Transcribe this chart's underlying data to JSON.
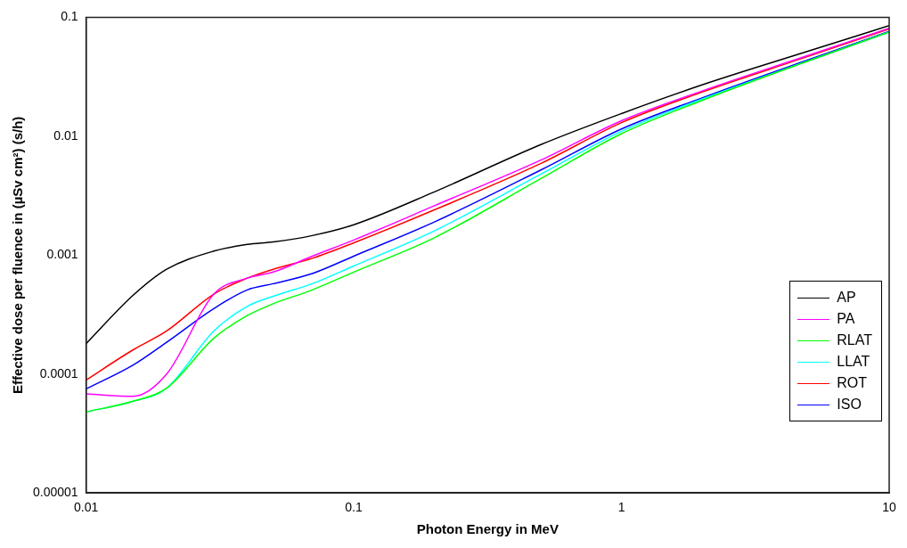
{
  "chart_data": {
    "type": "line",
    "xlabel": "Photon Energy in MeV",
    "ylabel": "Effective dose per fluence in (µSv cm²) (s/h)",
    "x": [
      0.01,
      0.015,
      0.02,
      0.03,
      0.04,
      0.05,
      0.07,
      0.1,
      0.2,
      0.5,
      1,
      2,
      5,
      10
    ],
    "series": [
      {
        "name": "AP",
        "color": "#000000",
        "values": [
          0.00018,
          0.00046,
          0.00076,
          0.00108,
          0.00123,
          0.00129,
          0.00146,
          0.0018,
          0.0034,
          0.0085,
          0.0155,
          0.027,
          0.052,
          0.085
        ]
      },
      {
        "name": "PA",
        "color": "#ff00ff",
        "values": [
          6.8e-05,
          6.5e-05,
          0.0001,
          0.00047,
          0.00064,
          0.00072,
          0.00098,
          0.00134,
          0.0026,
          0.0063,
          0.0135,
          0.024,
          0.048,
          0.081
        ]
      },
      {
        "name": "RLAT",
        "color": "#00ff00",
        "values": [
          4.8e-05,
          5.9e-05,
          7.6e-05,
          0.0002,
          0.00031,
          0.00039,
          0.00051,
          0.00072,
          0.0014,
          0.0044,
          0.0105,
          0.02,
          0.043,
          0.075
        ]
      },
      {
        "name": "LLAT",
        "color": "#00ffff",
        "values": [
          4.8e-05,
          5.9e-05,
          7.6e-05,
          0.00023,
          0.00037,
          0.00045,
          0.000575,
          0.00081,
          0.0016,
          0.0048,
          0.011,
          0.0205,
          0.043,
          0.075
        ]
      },
      {
        "name": "ROT",
        "color": "#ff0000",
        "values": [
          8.9e-05,
          0.00016,
          0.00023,
          0.00047,
          0.00064,
          0.00076,
          0.00094,
          0.00127,
          0.0024,
          0.0059,
          0.013,
          0.0235,
          0.047,
          0.08
        ]
      },
      {
        "name": "ISO",
        "color": "#0000ff",
        "values": [
          7.5e-05,
          0.000119,
          0.000185,
          0.000355,
          0.00051,
          0.000575,
          0.0007,
          0.00098,
          0.0019,
          0.0052,
          0.0115,
          0.021,
          0.044,
          0.076
        ]
      }
    ],
    "log": "xy",
    "xlim": [
      0.01,
      10
    ],
    "xticks": [
      0.01,
      0.1,
      1,
      10
    ],
    "ylim": [
      1e-05,
      0.1
    ],
    "yticks": [
      {
        "value": 1e-05,
        "label": "0.00001"
      },
      0.0001,
      0.001,
      0.01,
      0.1
    ],
    "grid": false,
    "legend": "bottom right",
    "marker": "none",
    "line_style": "solid"
  }
}
